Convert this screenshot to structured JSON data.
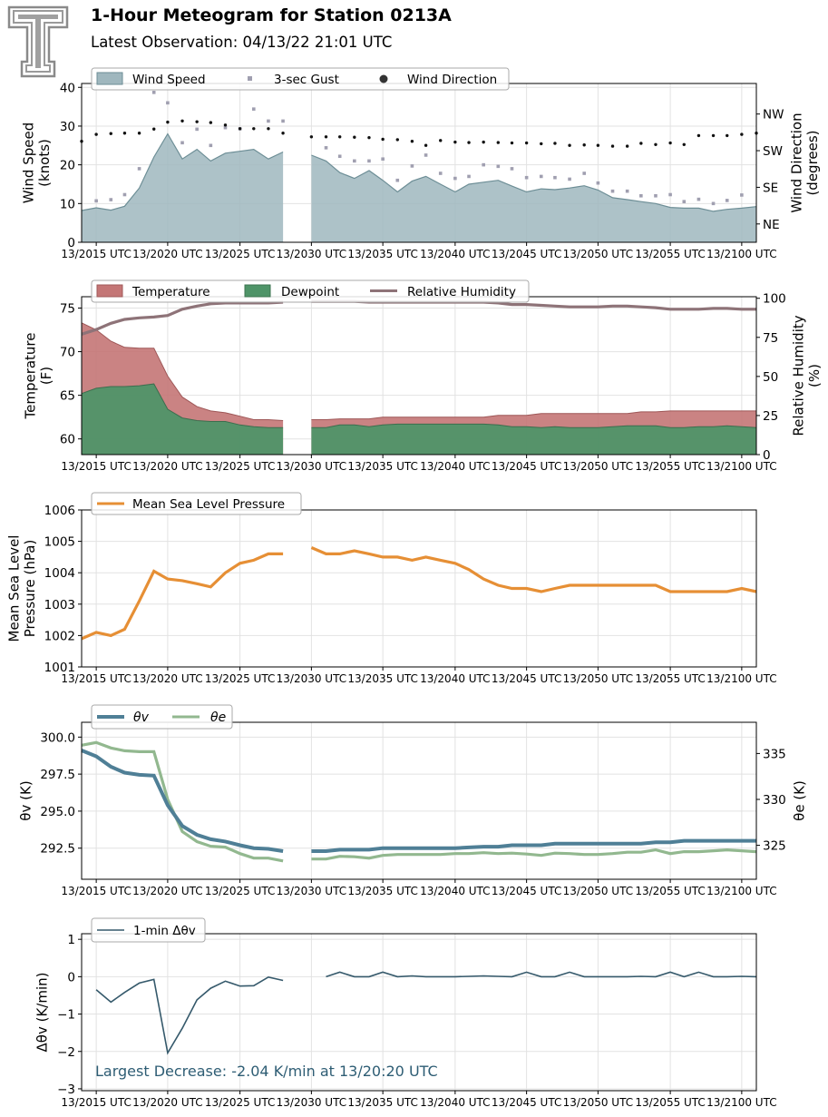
{
  "header": {
    "title": "1-Hour Meteogram for Station 0213A",
    "subtitle": "Latest Observation: 04/13/22 21:01 UTC"
  },
  "colors": {
    "wind_fill": "#9fb7be",
    "wind_line": "#6d8e96",
    "gust": "#a09fb0",
    "direction": "#111111",
    "temperature": "#c47676",
    "dewpoint": "#4f9468",
    "rh": "#8e7378",
    "pressure": "#e68f35",
    "theta_v": "#4f7f96",
    "theta_e": "#92b88f",
    "dtheta": "#35596b",
    "annotation": "#2e5d74"
  },
  "time_ticks": [
    "13/2015 UTC",
    "13/2020 UTC",
    "13/2025 UTC",
    "13/2030 UTC",
    "13/2035 UTC",
    "13/2040 UTC",
    "13/2045 UTC",
    "13/2050 UTC",
    "13/2055 UTC",
    "13/2100 UTC"
  ],
  "chart_data": [
    {
      "type": "area",
      "name": "wind",
      "xlim": [
        20.233,
        21.017
      ],
      "ylim": [
        0,
        41
      ],
      "ylabel": "Wind Speed\n(knots)",
      "y2label": "Wind Direction\n(degrees)",
      "yticks": [
        0,
        10,
        20,
        30,
        40
      ],
      "y2lim": [
        0,
        390
      ],
      "y2ticks": [
        45,
        135,
        225,
        315
      ],
      "y2ticklabels": [
        "NE",
        "SE",
        "SW",
        "NW"
      ],
      "legend": [
        "Wind Speed",
        "3-sec Gust",
        "Wind Direction"
      ],
      "segments": [
        {
          "x": [
            20.233,
            20.25,
            20.267,
            20.283,
            20.3,
            20.317,
            20.333,
            20.35,
            20.367,
            20.383,
            20.4,
            20.417,
            20.433,
            20.45,
            20.467
          ],
          "values": [
            8.2,
            8.9,
            8.3,
            9.3,
            14,
            22,
            28,
            21.5,
            24,
            21,
            23,
            23.5,
            24,
            21.5,
            23.3
          ]
        },
        {
          "x": [
            20.5,
            20.517,
            20.533,
            20.55,
            20.567,
            20.583,
            20.6,
            20.617,
            20.633,
            20.65,
            20.667,
            20.683,
            20.7,
            20.717,
            20.733,
            20.75,
            20.767,
            20.783,
            20.8,
            20.817,
            20.833,
            20.85,
            20.867,
            20.883,
            20.9,
            20.917,
            20.933,
            20.95,
            20.967,
            20.983,
            21.0,
            21.017
          ],
          "values": [
            22.5,
            21,
            18,
            16.5,
            18.5,
            16,
            13,
            15.8,
            17,
            15,
            13,
            15,
            15.5,
            16,
            14.5,
            13,
            13.8,
            13.6,
            14,
            14.6,
            13.5,
            11.5,
            11,
            10.5,
            10,
            9,
            8.8,
            8.8,
            8,
            8.5,
            8.8,
            9.2
          ]
        }
      ],
      "gust": {
        "x": [
          20.25,
          20.267,
          20.283,
          20.3,
          20.317,
          20.333,
          20.35,
          20.367,
          20.383,
          20.4,
          20.417,
          20.433,
          20.45,
          20.467,
          20.517,
          20.533,
          20.55,
          20.567,
          20.583,
          20.6,
          20.617,
          20.633,
          20.65,
          20.667,
          20.683,
          20.7,
          20.717,
          20.733,
          20.75,
          20.767,
          20.783,
          20.8,
          20.817,
          20.833,
          20.85,
          20.867,
          20.883,
          20.9,
          20.917,
          20.933,
          20.95,
          20.967,
          20.983,
          21.0
        ],
        "values": [
          10.7,
          11,
          12.3,
          19,
          38.7,
          36,
          25.7,
          29.2,
          25,
          29.6,
          29.3,
          34.4,
          31.3,
          31.3,
          24.4,
          22.2,
          21,
          21,
          21.5,
          16,
          19.7,
          22.5,
          17.8,
          16.5,
          17,
          20,
          19.6,
          19,
          16.7,
          17,
          16.7,
          16.3,
          17.8,
          15.3,
          13.2,
          13.2,
          12,
          12,
          12.3,
          10.5,
          11.1,
          10,
          10.8,
          12.2
        ]
      },
      "direction": {
        "x": [
          20.233,
          20.25,
          20.267,
          20.283,
          20.3,
          20.317,
          20.333,
          20.35,
          20.367,
          20.383,
          20.4,
          20.417,
          20.433,
          20.45,
          20.467,
          20.5,
          20.517,
          20.533,
          20.55,
          20.567,
          20.583,
          20.6,
          20.617,
          20.633,
          20.65,
          20.667,
          20.683,
          20.7,
          20.717,
          20.733,
          20.75,
          20.767,
          20.783,
          20.8,
          20.817,
          20.833,
          20.85,
          20.867,
          20.883,
          20.9,
          20.917,
          20.933,
          20.95,
          20.967,
          20.983,
          21.0,
          21.017
        ],
        "values": [
          248,
          265,
          267,
          268,
          268,
          278,
          295,
          298,
          296,
          294,
          288,
          279,
          279,
          279,
          268,
          259,
          259,
          259,
          258,
          257,
          253,
          252,
          248,
          238,
          250,
          246,
          245,
          246,
          245,
          244,
          244,
          242,
          243,
          238,
          239,
          238,
          236,
          236,
          243,
          240,
          244,
          240,
          262,
          262,
          262,
          265,
          268
        ]
      }
    },
    {
      "type": "area",
      "name": "temperature",
      "xlim": [
        20.233,
        21.017
      ],
      "ylim": [
        58.2,
        76.3
      ],
      "ylabel": "Temperature\n(F)",
      "y2label": "Relative Humidity\n(%)",
      "yticks": [
        60,
        65,
        70,
        75
      ],
      "y2lim": [
        0,
        101
      ],
      "y2ticks": [
        0,
        25,
        50,
        75,
        100
      ],
      "legend": [
        "Temperature",
        "Dewpoint",
        "Relative Humidity"
      ],
      "segments": [
        {
          "x": [
            20.233,
            20.25,
            20.267,
            20.283,
            20.3,
            20.317,
            20.333,
            20.35,
            20.367,
            20.383,
            20.4,
            20.417,
            20.433,
            20.45,
            20.467
          ],
          "temperature": [
            73.3,
            72.5,
            71.2,
            70.5,
            70.4,
            70.4,
            67.2,
            64.8,
            63.7,
            63.2,
            63,
            62.6,
            62.2,
            62.2,
            62.1
          ],
          "dewpoint": [
            65.2,
            65.8,
            66,
            66,
            66.1,
            66.3,
            63.4,
            62.4,
            62.1,
            62,
            62,
            61.6,
            61.4,
            61.3,
            61.3
          ],
          "rh": [
            77,
            80,
            84,
            86.5,
            87.5,
            88,
            89,
            93,
            95,
            96.5,
            97,
            97,
            97,
            97,
            97.5
          ]
        },
        {
          "x": [
            20.5,
            20.517,
            20.533,
            20.55,
            20.567,
            20.583,
            20.6,
            20.617,
            20.633,
            20.65,
            20.667,
            20.683,
            20.7,
            20.717,
            20.733,
            20.75,
            20.767,
            20.783,
            20.8,
            20.817,
            20.833,
            20.85,
            20.867,
            20.883,
            20.9,
            20.917,
            20.933,
            20.95,
            20.967,
            20.983,
            21.0,
            21.017
          ],
          "temperature": [
            62.2,
            62.2,
            62.3,
            62.3,
            62.3,
            62.5,
            62.5,
            62.5,
            62.5,
            62.5,
            62.5,
            62.5,
            62.5,
            62.7,
            62.7,
            62.7,
            62.9,
            62.9,
            62.9,
            62.9,
            62.9,
            62.9,
            62.9,
            63.1,
            63.1,
            63.2,
            63.2,
            63.2,
            63.2,
            63.2,
            63.2,
            63.2
          ],
          "dewpoint": [
            61.3,
            61.3,
            61.6,
            61.6,
            61.4,
            61.6,
            61.7,
            61.7,
            61.7,
            61.7,
            61.7,
            61.7,
            61.7,
            61.6,
            61.4,
            61.4,
            61.3,
            61.4,
            61.3,
            61.3,
            61.3,
            61.4,
            61.5,
            61.5,
            61.5,
            61.3,
            61.3,
            61.4,
            61.4,
            61.5,
            61.4,
            61.3
          ],
          "rh": [
            98,
            98,
            98,
            98,
            97.5,
            97.5,
            97.5,
            97.5,
            97.5,
            97.5,
            97.5,
            97.5,
            97.5,
            97,
            96,
            96,
            95.5,
            95,
            94.5,
            94.5,
            94.5,
            95,
            95,
            94.5,
            94,
            93,
            93,
            93,
            93.5,
            93.5,
            93,
            93
          ]
        }
      ]
    },
    {
      "type": "line",
      "name": "pressure",
      "xlim": [
        20.233,
        21.017
      ],
      "ylim": [
        1001,
        1006
      ],
      "ylabel": "Mean Sea Level\nPressure (hPa)",
      "yticks": [
        1001,
        1002,
        1003,
        1004,
        1005,
        1006
      ],
      "legend": [
        "Mean Sea Level Pressure"
      ],
      "segments": [
        {
          "x": [
            20.233,
            20.25,
            20.267,
            20.283,
            20.3,
            20.317,
            20.333,
            20.35,
            20.367,
            20.383,
            20.4,
            20.417,
            20.433,
            20.45,
            20.467
          ],
          "values": [
            1001.9,
            1002.1,
            1002.0,
            1002.2,
            1003.1,
            1004.05,
            1003.8,
            1003.75,
            1003.65,
            1003.55,
            1004.0,
            1004.3,
            1004.4,
            1004.6,
            1004.6
          ]
        },
        {
          "x": [
            20.5,
            20.517,
            20.533,
            20.55,
            20.567,
            20.583,
            20.6,
            20.617,
            20.633,
            20.65,
            20.667,
            20.683,
            20.7,
            20.717,
            20.733,
            20.75,
            20.767,
            20.783,
            20.8,
            20.817,
            20.833,
            20.85,
            20.867,
            20.883,
            20.9,
            20.917,
            20.933,
            20.95,
            20.967,
            20.983,
            21.0,
            21.017
          ],
          "values": [
            1004.8,
            1004.6,
            1004.6,
            1004.7,
            1004.6,
            1004.5,
            1004.5,
            1004.4,
            1004.5,
            1004.4,
            1004.3,
            1004.1,
            1003.8,
            1003.6,
            1003.5,
            1003.5,
            1003.4,
            1003.5,
            1003.6,
            1003.6,
            1003.6,
            1003.6,
            1003.6,
            1003.6,
            1003.6,
            1003.4,
            1003.4,
            1003.4,
            1003.4,
            1003.4,
            1003.5,
            1003.4
          ]
        }
      ]
    },
    {
      "type": "line",
      "name": "theta",
      "xlim": [
        20.233,
        21.017
      ],
      "ylim": [
        290.4,
        301
      ],
      "ylabel": "θv (K)",
      "y2label": "θe (K)",
      "yticks": [
        292.5,
        295.0,
        297.5,
        300.0
      ],
      "y2lim": [
        321.3,
        338.4
      ],
      "y2ticks": [
        325,
        330,
        335
      ],
      "legend": [
        "θv",
        "θe"
      ],
      "theta_v": [
        {
          "x": [
            20.233,
            20.25,
            20.267,
            20.283,
            20.3,
            20.317,
            20.333,
            20.35,
            20.367,
            20.383,
            20.4,
            20.417,
            20.433,
            20.45,
            20.467
          ],
          "values": [
            299.1,
            298.7,
            298.0,
            297.6,
            297.45,
            297.4,
            295.4,
            294.0,
            293.4,
            293.1,
            292.95,
            292.7,
            292.5,
            292.45,
            292.3
          ]
        },
        {
          "x": [
            20.5,
            20.517,
            20.533,
            20.55,
            20.567,
            20.583,
            20.6,
            20.617,
            20.633,
            20.65,
            20.667,
            20.683,
            20.7,
            20.717,
            20.733,
            20.75,
            20.767,
            20.783,
            20.8,
            20.817,
            20.833,
            20.85,
            20.867,
            20.883,
            20.9,
            20.917,
            20.933,
            20.95,
            20.967,
            20.983,
            21.0,
            21.017
          ],
          "values": [
            292.3,
            292.3,
            292.4,
            292.4,
            292.4,
            292.5,
            292.5,
            292.5,
            292.5,
            292.5,
            292.5,
            292.55,
            292.6,
            292.6,
            292.7,
            292.7,
            292.7,
            292.8,
            292.8,
            292.8,
            292.8,
            292.8,
            292.8,
            292.8,
            292.9,
            292.9,
            293.0,
            293.0,
            293.0,
            293.0,
            293.0,
            293.0
          ]
        }
      ],
      "theta_e": [
        {
          "x": [
            20.233,
            20.25,
            20.267,
            20.283,
            20.3,
            20.317,
            20.333,
            20.35,
            20.367,
            20.383,
            20.4,
            20.417,
            20.433,
            20.45,
            20.467
          ],
          "values": [
            335.9,
            336.2,
            335.6,
            335.3,
            335.2,
            335.2,
            330.0,
            326.5,
            325.4,
            324.9,
            324.8,
            324.1,
            323.6,
            323.6,
            323.3
          ]
        },
        {
          "x": [
            20.5,
            20.517,
            20.533,
            20.55,
            20.567,
            20.583,
            20.6,
            20.617,
            20.633,
            20.65,
            20.667,
            20.683,
            20.7,
            20.717,
            20.733,
            20.75,
            20.767,
            20.783,
            20.8,
            20.817,
            20.833,
            20.85,
            20.867,
            20.883,
            20.9,
            20.917,
            20.933,
            20.95,
            20.967,
            20.983,
            21.0,
            21.017
          ],
          "values": [
            323.5,
            323.5,
            323.8,
            323.75,
            323.6,
            323.9,
            324.0,
            324.0,
            324.0,
            324.0,
            324.1,
            324.1,
            324.2,
            324.1,
            324.15,
            324.05,
            323.9,
            324.15,
            324.1,
            324.0,
            324.0,
            324.1,
            324.25,
            324.25,
            324.5,
            324.1,
            324.3,
            324.3,
            324.4,
            324.5,
            324.4,
            324.3
          ]
        }
      ]
    },
    {
      "type": "line",
      "name": "dtheta",
      "xlim": [
        20.233,
        21.017
      ],
      "ylim": [
        -3.05,
        1.15
      ],
      "ylabel": "Δθv (K/min)",
      "yticks": [
        -3,
        -2,
        -1,
        0,
        1
      ],
      "legend": [
        "1-min Δθv"
      ],
      "annotation": "Largest Decrease: -2.04 K/min at 13/20:20 UTC",
      "segments": [
        {
          "x": [
            20.25,
            20.267,
            20.283,
            20.3,
            20.317,
            20.333,
            20.35,
            20.367,
            20.383,
            20.4,
            20.417,
            20.433,
            20.45,
            20.467
          ],
          "values": [
            -0.35,
            -0.68,
            -0.42,
            -0.17,
            -0.07,
            -2.04,
            -1.38,
            -0.62,
            -0.31,
            -0.12,
            -0.25,
            -0.24,
            -0.01,
            -0.1
          ]
        },
        {
          "x": [
            20.517,
            20.533,
            20.55,
            20.567,
            20.583,
            20.6,
            20.617,
            20.633,
            20.65,
            20.667,
            20.683,
            20.7,
            20.717,
            20.733,
            20.75,
            20.767,
            20.783,
            20.8,
            20.817,
            20.833,
            20.85,
            20.867,
            20.883,
            20.9,
            20.917,
            20.933,
            20.95,
            20.967,
            20.983,
            21.0,
            21.017
          ],
          "values": [
            0.0,
            0.12,
            0.0,
            0.0,
            0.12,
            0.0,
            0.02,
            0.0,
            0.0,
            0.0,
            0.01,
            0.02,
            0.01,
            0.0,
            0.12,
            0.0,
            0.0,
            0.12,
            0.0,
            0.0,
            0.0,
            0.0,
            0.01,
            0.0,
            0.12,
            0.0,
            0.12,
            0.0,
            0.0,
            0.01,
            0.0
          ]
        }
      ]
    }
  ]
}
